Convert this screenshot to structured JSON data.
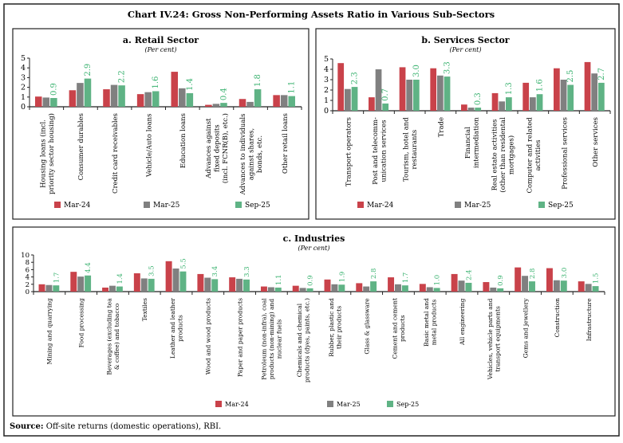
{
  "title": "Chart IV.24: Gross Non-Performing Assets Ratio in Various Sub-Sectors",
  "source_label": "Source:",
  "source_text": " Off-site returns (domestic operations), RBI.",
  "colors": {
    "Mar-24": "#c9424a",
    "Mar-25": "#808080",
    "Sep-25": "#5fb385",
    "label": "#3cb371"
  },
  "chart_data": [
    {
      "type": "bar",
      "title": "a. Retail Sector",
      "subtitle": "(Per cent)",
      "ylim": [
        0,
        5
      ],
      "yticks": [
        0,
        1,
        2,
        3,
        4,
        5
      ],
      "legend_placement": "bottom",
      "categories": [
        [
          "Housing loans (incl.",
          "priority sector housing)"
        ],
        [
          "Consumer durables"
        ],
        [
          "Credit card receivables"
        ],
        [
          "Vehicle/Auto loans"
        ],
        [
          "Education loans"
        ],
        [
          "Advances against",
          "fixed deposits",
          "(incl. FCNR(B), etc.)"
        ],
        [
          "Advances to individuals",
          "against shares,",
          "bonds, etc."
        ],
        [
          "Other retail loans"
        ]
      ],
      "series": [
        {
          "name": "Mar-24",
          "values": [
            1.05,
            1.7,
            1.8,
            1.3,
            3.6,
            0.2,
            0.8,
            1.2
          ]
        },
        {
          "name": "Mar-25",
          "values": [
            0.95,
            2.45,
            2.25,
            1.5,
            1.9,
            0.3,
            0.5,
            1.2
          ]
        },
        {
          "name": "Sep-25",
          "values": [
            0.9,
            2.9,
            2.2,
            1.6,
            1.4,
            0.4,
            1.8,
            1.1
          ]
        }
      ],
      "data_labels": [
        "0.9",
        "2.9",
        "2.2",
        "1.6",
        "1.4",
        "0.4",
        "1.8",
        "1.1"
      ]
    },
    {
      "type": "bar",
      "title": "b. Services Sector",
      "subtitle": "(Per cent)",
      "ylim": [
        0,
        5
      ],
      "yticks": [
        0,
        1,
        2,
        3,
        4,
        5
      ],
      "legend_placement": "bottom",
      "categories": [
        [
          "Transport operators"
        ],
        [
          "Post and telecomm-",
          "unication services"
        ],
        [
          "Tourism, hotel and",
          "restaurants"
        ],
        [
          "Trade"
        ],
        [
          "Financial",
          "intermediation"
        ],
        [
          "Real estate activities",
          "(other than residental",
          "mortgages)"
        ],
        [
          "Computer and related",
          "activities"
        ],
        [
          "Professional services"
        ],
        [
          "Other services"
        ]
      ],
      "series": [
        {
          "name": "Mar-24",
          "values": [
            4.6,
            1.3,
            4.2,
            4.1,
            0.6,
            1.7,
            2.7,
            4.1,
            4.7
          ]
        },
        {
          "name": "Mar-25",
          "values": [
            2.1,
            4.0,
            3.0,
            3.4,
            0.3,
            0.9,
            1.3,
            3.0,
            3.6
          ]
        },
        {
          "name": "Sep-25",
          "values": [
            2.3,
            0.7,
            3.0,
            3.3,
            0.3,
            1.3,
            1.6,
            2.5,
            2.7
          ]
        }
      ],
      "data_labels": [
        "2.3",
        "0.7",
        "3.0",
        "3.3",
        "0.3",
        "1.3",
        "1.6",
        "2.5",
        "2.7"
      ]
    },
    {
      "type": "bar",
      "title": "c. Industries",
      "subtitle": "(Per cent)",
      "ylim": [
        0,
        10
      ],
      "yticks": [
        0,
        2,
        4,
        6,
        8,
        10
      ],
      "legend_placement": "bottom",
      "categories": [
        [
          "Mining and quarrying"
        ],
        [
          "Food processing"
        ],
        [
          "Beverages (excluding tea",
          "& coffee) and tobacco"
        ],
        [
          "Textiles"
        ],
        [
          "Leather and leather",
          "products"
        ],
        [
          "Wood and wood products"
        ],
        [
          "Paper and paper products"
        ],
        [
          "Petroleum (non-infra), coal",
          "products (non-mining) and",
          "nuclear fuels"
        ],
        [
          "Chemicals and chemical",
          "products (dyes, paints, etc.)"
        ],
        [
          "Rubber, plastic and",
          "their products"
        ],
        [
          "Glass & glassware"
        ],
        [
          "Cement  and cement",
          "products"
        ],
        [
          "Basic metal and",
          "metal products"
        ],
        [
          "All engineering"
        ],
        [
          "Vehicles, vehicle parts and",
          "transport equipments"
        ],
        [
          "Gems and jewellery"
        ],
        [
          "Construction"
        ],
        [
          "Infrastructure"
        ]
      ],
      "series": [
        {
          "name": "Mar-24",
          "values": [
            2.0,
            5.4,
            1.1,
            5.0,
            8.3,
            4.8,
            3.9,
            1.4,
            1.6,
            3.3,
            2.3,
            3.9,
            2.1,
            4.8,
            2.6,
            6.6,
            6.4,
            2.8
          ]
        },
        {
          "name": "Mar-25",
          "values": [
            1.8,
            4.1,
            1.6,
            3.6,
            6.3,
            3.8,
            3.5,
            1.2,
            1.0,
            2.0,
            1.4,
            2.0,
            1.2,
            3.0,
            1.1,
            4.3,
            3.1,
            2.1
          ]
        },
        {
          "name": "Sep-25",
          "values": [
            1.7,
            4.4,
            1.4,
            3.5,
            5.5,
            3.4,
            3.3,
            1.1,
            0.9,
            1.9,
            2.8,
            1.7,
            1.0,
            2.4,
            0.9,
            2.8,
            3.0,
            1.5
          ]
        }
      ],
      "data_labels": [
        "1.7",
        "4.4",
        "1.4",
        "3.5",
        "5.5",
        "3.4",
        "3.3",
        "1.1",
        "0.9",
        "1.9",
        "2.8",
        "1.7",
        "1.0",
        "2.4",
        "0.9",
        "2.8",
        "3.0",
        "1.5"
      ]
    }
  ]
}
